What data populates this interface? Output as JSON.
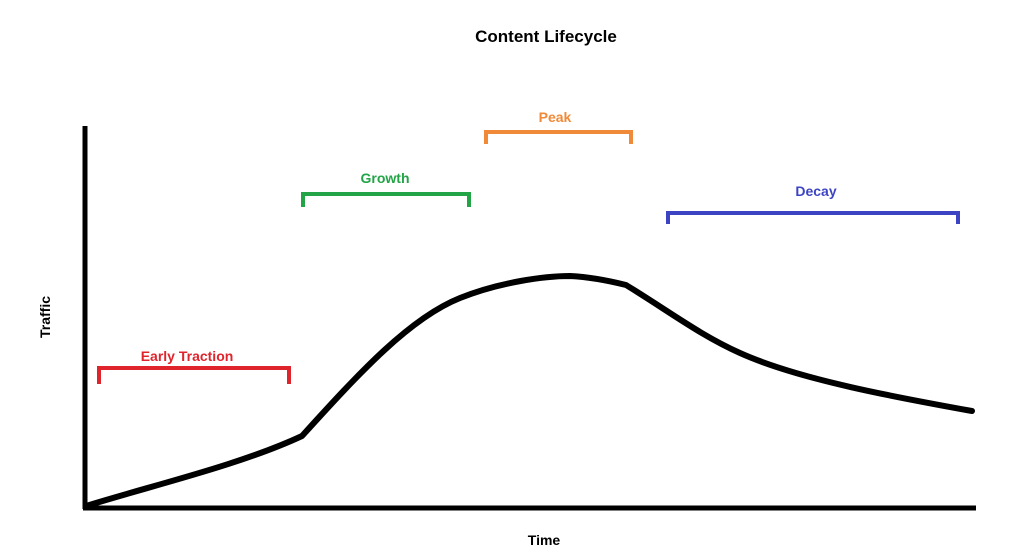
{
  "diagram": {
    "title": "Content Lifecycle",
    "x_axis_label": "Time",
    "y_axis_label": "Traffic",
    "phases": [
      {
        "id": "early-traction",
        "label": "Early Traction",
        "color": "#e0242c"
      },
      {
        "id": "growth",
        "label": "Growth",
        "color": "#22a447"
      },
      {
        "id": "peak",
        "label": "Peak",
        "color": "#f08a38"
      },
      {
        "id": "decay",
        "label": "Decay",
        "color": "#3d44c4"
      }
    ],
    "curve_color": "#000000"
  }
}
